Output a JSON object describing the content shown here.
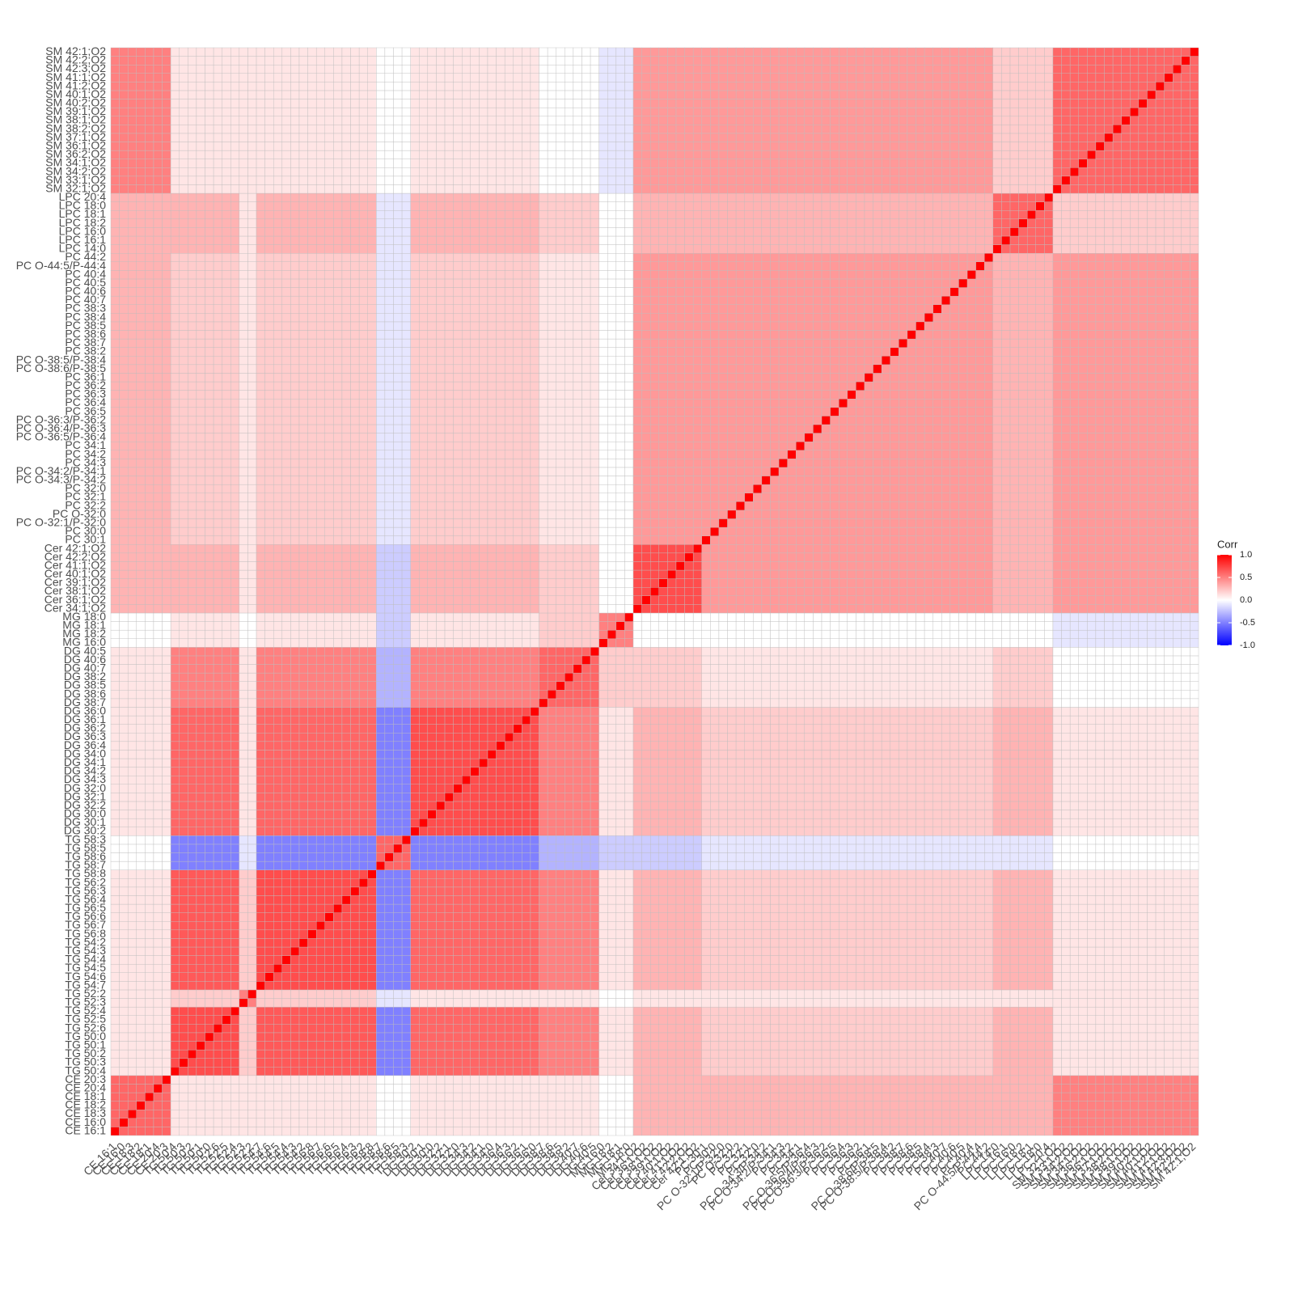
{
  "chart_data": {
    "type": "heatmap",
    "blocks": [
      {
        "categories": [
          "CE 16:1",
          "CE 16:0",
          "CE 18:3",
          "CE 18:2",
          "CE 18:1",
          "CE 20:4",
          "CE 20:3"
        ]
      },
      {
        "categories": [
          "TG 50:4",
          "TG 50:3",
          "TG 50:2",
          "TG 50:1",
          "TG 50:0",
          "TG 52:6",
          "TG 52:5",
          "TG 52:4"
        ]
      },
      {
        "categories": [
          "TG 52:3",
          "TG 52:2"
        ]
      },
      {
        "categories": [
          "TG 54:7",
          "TG 54:6",
          "TG 54:5",
          "TG 54:4",
          "TG 54:3",
          "TG 54:2",
          "TG 56:8",
          "TG 56:7",
          "TG 56:6",
          "TG 56:5",
          "TG 56:4",
          "TG 56:3",
          "TG 56:2",
          "TG 58:8"
        ]
      },
      {
        "categories": [
          "TG 58:7",
          "TG 58:6",
          "TG 58:5",
          "TG 58:3"
        ]
      },
      {
        "categories": [
          "DG 30:2",
          "DG 30:1",
          "DG 30:0",
          "DG 32:2",
          "DG 32:1",
          "DG 32:0",
          "DG 34:3",
          "DG 34:2",
          "DG 34:1",
          "DG 34:0",
          "DG 36:4",
          "DG 36:3",
          "DG 36:2",
          "DG 36:1",
          "DG 36:0"
        ]
      },
      {
        "categories": [
          "DG 38:7",
          "DG 38:6",
          "DG 38:5",
          "DG 38:2",
          "DG 40:7",
          "DG 40:6",
          "DG 40:5"
        ]
      },
      {
        "categories": [
          "MG 16:0",
          "MG 18:2",
          "MG 18:1",
          "MG 18:0"
        ]
      },
      {
        "categories": [
          "Cer 34:1;O2",
          "Cer 36:1;O2",
          "Cer 38:1;O2",
          "Cer 39:1;O2",
          "Cer 40:1;O2",
          "Cer 41:1;O2",
          "Cer 42:2;O2",
          "Cer 42:1;O2"
        ]
      },
      {
        "categories": [
          "PC 30:1",
          "PC 30:0",
          "PC O-32:1/P-32:0",
          "PC O-32:0",
          "PC 32:2",
          "PC 32:1",
          "PC 32:0",
          "PC O-34:3/P-34:2",
          "PC O-34:2/P-34:1",
          "PC 34:3",
          "PC 34:2",
          "PC 34:1",
          "PC O-36:5/P-36:4",
          "PC O-36:4/P-36:3",
          "PC O-36:3/P-36:2",
          "PC 36:5",
          "PC 36:4",
          "PC 36:3",
          "PC 36:2",
          "PC 36:1",
          "PC O-38:6/P-38:5",
          "PC O-38:5/P-38:4",
          "PC 38:2",
          "PC 38:7",
          "PC 38:6",
          "PC 38:5",
          "PC 38:4",
          "PC 38:3",
          "PC 40:7",
          "PC 40:6",
          "PC 40:5",
          "PC 40:4",
          "PC O-44:5/P-44:4",
          "PC 44:2"
        ]
      },
      {
        "categories": [
          "LPC 14:0",
          "LPC 16:1",
          "LPC 16:0",
          "LPC 18:2",
          "LPC 18:1",
          "LPC 18:0",
          "LPC 20:4"
        ]
      },
      {
        "categories": [
          "SM 32:1;O2",
          "SM 33:1;O2",
          "SM 34:2;O2",
          "SM 34:1;O2",
          "SM 36:2;O2",
          "SM 36:1;O2",
          "SM 37:1;O2",
          "SM 38:2;O2",
          "SM 38:1;O2",
          "SM 39:1;O2",
          "SM 40:2;O2",
          "SM 40:1;O2",
          "SM 41:2;O2",
          "SM 41:1;O2",
          "SM 42:3;O2",
          "SM 42:2;O2",
          "SM 42:1;O2"
        ]
      }
    ],
    "values": [
      [
        0.6,
        0.1,
        0.1,
        0.1,
        0,
        0.1,
        0.1,
        0,
        0.3,
        0.3,
        0.3,
        0.5
      ],
      [
        0.1,
        0.7,
        0.2,
        0.65,
        -0.5,
        0.6,
        0.5,
        0.1,
        0.3,
        0.2,
        0.3,
        0.1
      ],
      [
        0.1,
        0.2,
        0.5,
        0.2,
        -0.1,
        0.1,
        0.1,
        0,
        0.1,
        0.1,
        0.1,
        0.1
      ],
      [
        0.1,
        0.65,
        0.2,
        0.7,
        -0.5,
        0.6,
        0.5,
        0.1,
        0.3,
        0.2,
        0.3,
        0.1
      ],
      [
        0,
        -0.5,
        -0.1,
        -0.5,
        0.6,
        -0.5,
        -0.3,
        -0.2,
        -0.2,
        -0.1,
        -0.1,
        0
      ],
      [
        0.1,
        0.6,
        0.1,
        0.6,
        -0.5,
        0.7,
        0.5,
        0.1,
        0.3,
        0.2,
        0.3,
        0.1
      ],
      [
        0.1,
        0.5,
        0.1,
        0.5,
        -0.3,
        0.5,
        0.6,
        0.2,
        0.2,
        0.1,
        0.2,
        0
      ],
      [
        0,
        0.1,
        0,
        0.1,
        -0.2,
        0.1,
        0.2,
        0.5,
        0,
        0,
        0,
        -0.1
      ],
      [
        0.3,
        0.3,
        0.1,
        0.3,
        -0.2,
        0.3,
        0.2,
        0,
        0.7,
        0.4,
        0.3,
        0.4
      ],
      [
        0.3,
        0.2,
        0.1,
        0.2,
        -0.1,
        0.2,
        0.1,
        0,
        0.4,
        0.4,
        0.3,
        0.4
      ],
      [
        0.3,
        0.3,
        0.1,
        0.3,
        -0.1,
        0.3,
        0.2,
        0,
        0.3,
        0.3,
        0.6,
        0.2
      ],
      [
        0.5,
        0.1,
        0.1,
        0.1,
        0,
        0.1,
        0,
        -0.1,
        0.4,
        0.4,
        0.2,
        0.6
      ]
    ],
    "diagonal": 1,
    "legend_title": "Corr",
    "zlim": [
      -1,
      1
    ],
    "zticks": [
      {
        "value": 1,
        "label": "1.0"
      },
      {
        "value": 0.5,
        "label": "0.5"
      },
      {
        "value": 0,
        "label": "0.0"
      },
      {
        "value": -0.5,
        "label": "-0.5"
      },
      {
        "value": -1,
        "label": "-1.0"
      }
    ],
    "colors": {
      "low": "#0000FF",
      "mid": "#FFFFFF",
      "high": "#FF0000"
    },
    "legend": "right"
  }
}
